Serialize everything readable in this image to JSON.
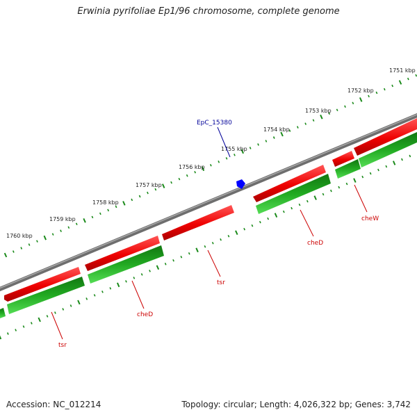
{
  "title": "Erwinia pyrifoliae Ep1/96 chromosome, complete genome",
  "accession_text": "Accession: NC_012214",
  "summary_text": "Topology: circular; Length: 4,026,322 bp; Genes: 3,742",
  "colors": {
    "backbone": "#808080",
    "forward_gene": "#ff0000",
    "reverse_gene": "#22aa22",
    "label_red": "#cc0000",
    "label_blue": "#000099",
    "marker_blue": "#0000ff"
  },
  "ticks": [
    {
      "kbp": 1751,
      "label": "1751 kbp"
    },
    {
      "kbp": 1752,
      "label": "1752 kbp"
    },
    {
      "kbp": 1753,
      "label": "1753 kbp"
    },
    {
      "kbp": 1754,
      "label": "1754 kbp"
    },
    {
      "kbp": 1755,
      "label": "1755 kbp"
    },
    {
      "kbp": 1756,
      "label": "1756 kbp"
    },
    {
      "kbp": 1757,
      "label": "1757 kbp"
    },
    {
      "kbp": 1758,
      "label": "1758 kbp"
    },
    {
      "kbp": 1759,
      "label": "1759 kbp"
    },
    {
      "kbp": 1760,
      "label": "1760 kbp"
    }
  ],
  "gene_labels": [
    {
      "name": "cheW",
      "color": "#cc0000"
    },
    {
      "name": "cheD",
      "color": "#cc0000"
    },
    {
      "name": "tsr",
      "color": "#cc0000"
    },
    {
      "name": "cheD",
      "color": "#cc0000"
    },
    {
      "name": "tsr",
      "color": "#cc0000"
    }
  ],
  "feature_label": {
    "name": "EpC_15380",
    "color": "#000099"
  }
}
